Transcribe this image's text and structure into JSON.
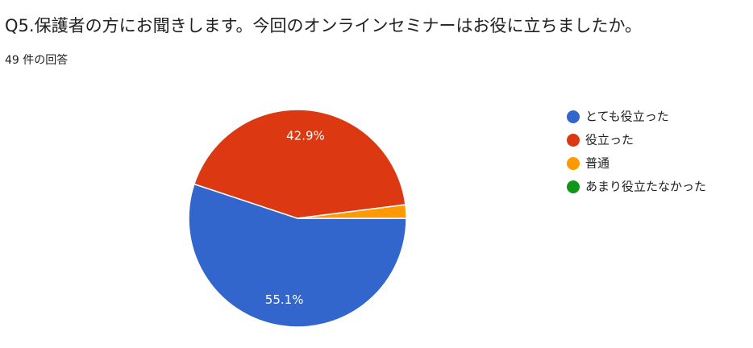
{
  "chart_data": {
    "type": "pie",
    "title": "Q5.保護者の方にお聞きします。今回のオンラインセミナーはお役に立ちましたか。",
    "subtitle": "49 件の回答",
    "categories": [
      "とても役立った",
      "役立った",
      "普通",
      "あまり役立たなかった"
    ],
    "values": [
      55.1,
      42.9,
      2.0,
      0
    ],
    "value_labels": [
      "55.1%",
      "42.9%",
      null,
      null
    ],
    "colors": [
      "#3366cc",
      "#dc3912",
      "#ff9900",
      "#109618"
    ],
    "legend": "right"
  }
}
